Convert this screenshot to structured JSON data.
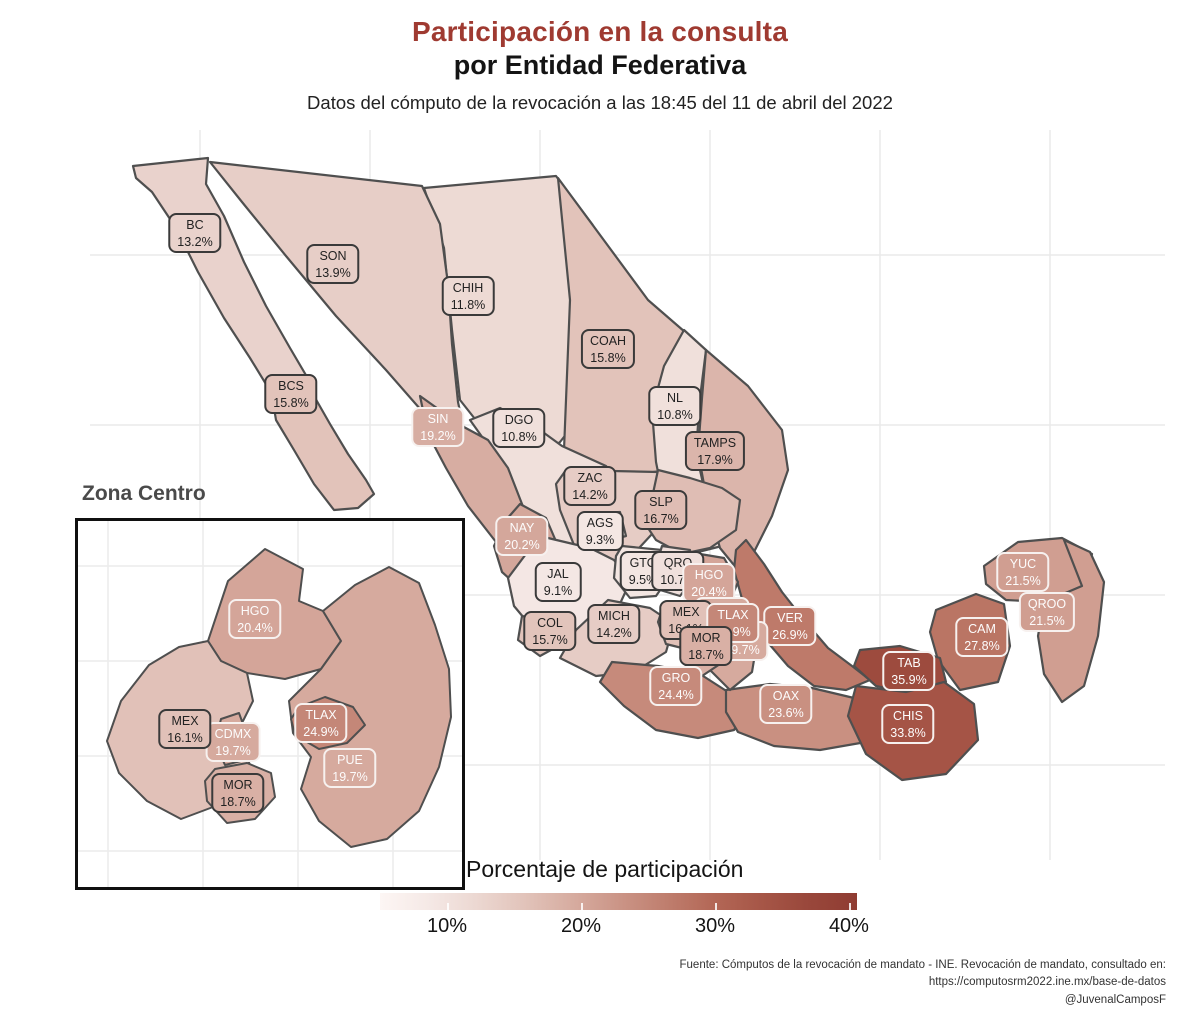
{
  "header": {
    "title": "Participación en la consulta",
    "subtitle": "por Entidad Federativa",
    "caption": "Datos del cómputo de la revocación a las 18:45 del 11 de abril del 2022",
    "title_color": "#9f3a31"
  },
  "inset": {
    "title": "Zona Centro"
  },
  "legend": {
    "title": "Porcentaje de participación",
    "ticks": [
      "10%",
      "20%",
      "30%",
      "40%"
    ],
    "tick_values": [
      10,
      20,
      30,
      40
    ]
  },
  "footer": {
    "line1": "Fuente: Cómputos de la revocación de mandato - INE. Revocación de mandato, consultado en:",
    "line2": "https://computosrm2022.ine.mx/base-de-datos",
    "line3": "@JuvenalCamposF"
  },
  "chart_data": {
    "type": "choropleth",
    "region": "Mexico",
    "title": "Participación en la consulta por Entidad Federativa",
    "subtitle": "Datos del cómputo de la revocación a las 18:45 del 11 de abril del 2022",
    "variable": "Porcentaje de participación",
    "unit": "percent",
    "legend_position": "bottom",
    "color_scale": {
      "low_color": "#fdf6f4",
      "high_color": "#8f3c32",
      "domain": [
        5,
        40.6
      ]
    },
    "states": [
      {
        "code": "BC",
        "value": 13.2
      },
      {
        "code": "SON",
        "value": 13.9
      },
      {
        "code": "CHIH",
        "value": 11.8
      },
      {
        "code": "COAH",
        "value": 15.8
      },
      {
        "code": "NL",
        "value": 10.8
      },
      {
        "code": "TAMPS",
        "value": 17.9
      },
      {
        "code": "BCS",
        "value": 15.8
      },
      {
        "code": "SIN",
        "value": 19.2
      },
      {
        "code": "DGO",
        "value": 10.8
      },
      {
        "code": "ZAC",
        "value": 14.2
      },
      {
        "code": "SLP",
        "value": 16.7
      },
      {
        "code": "AGS",
        "value": 9.3
      },
      {
        "code": "NAY",
        "value": 20.2
      },
      {
        "code": "JAL",
        "value": 9.1
      },
      {
        "code": "GTO",
        "value": 9.5
      },
      {
        "code": "QRO",
        "value": 10.7
      },
      {
        "code": "HGO",
        "value": 20.4
      },
      {
        "code": "COL",
        "value": 15.7
      },
      {
        "code": "MICH",
        "value": 14.2
      },
      {
        "code": "MEX",
        "value": 16.1
      },
      {
        "code": "CDMX",
        "value": 19.7
      },
      {
        "code": "TLAX",
        "value": 24.9
      },
      {
        "code": "PUE",
        "value": 19.7
      },
      {
        "code": "MOR",
        "value": 18.7
      },
      {
        "code": "VER",
        "value": 26.9
      },
      {
        "code": "GRO",
        "value": 24.4
      },
      {
        "code": "OAX",
        "value": 23.6
      },
      {
        "code": "TAB",
        "value": 35.9
      },
      {
        "code": "CHIS",
        "value": 33.8
      },
      {
        "code": "CAM",
        "value": 27.8
      },
      {
        "code": "YUC",
        "value": 21.5
      },
      {
        "code": "QROO",
        "value": 21.5
      }
    ],
    "inset": {
      "title": "Zona Centro",
      "states": [
        {
          "code": "HGO",
          "value": 20.4
        },
        {
          "code": "MEX",
          "value": 16.1
        },
        {
          "code": "CDMX",
          "value": 19.7
        },
        {
          "code": "TLAX",
          "value": 24.9
        },
        {
          "code": "PUE",
          "value": 19.7
        },
        {
          "code": "MOR",
          "value": 18.7
        }
      ]
    }
  }
}
